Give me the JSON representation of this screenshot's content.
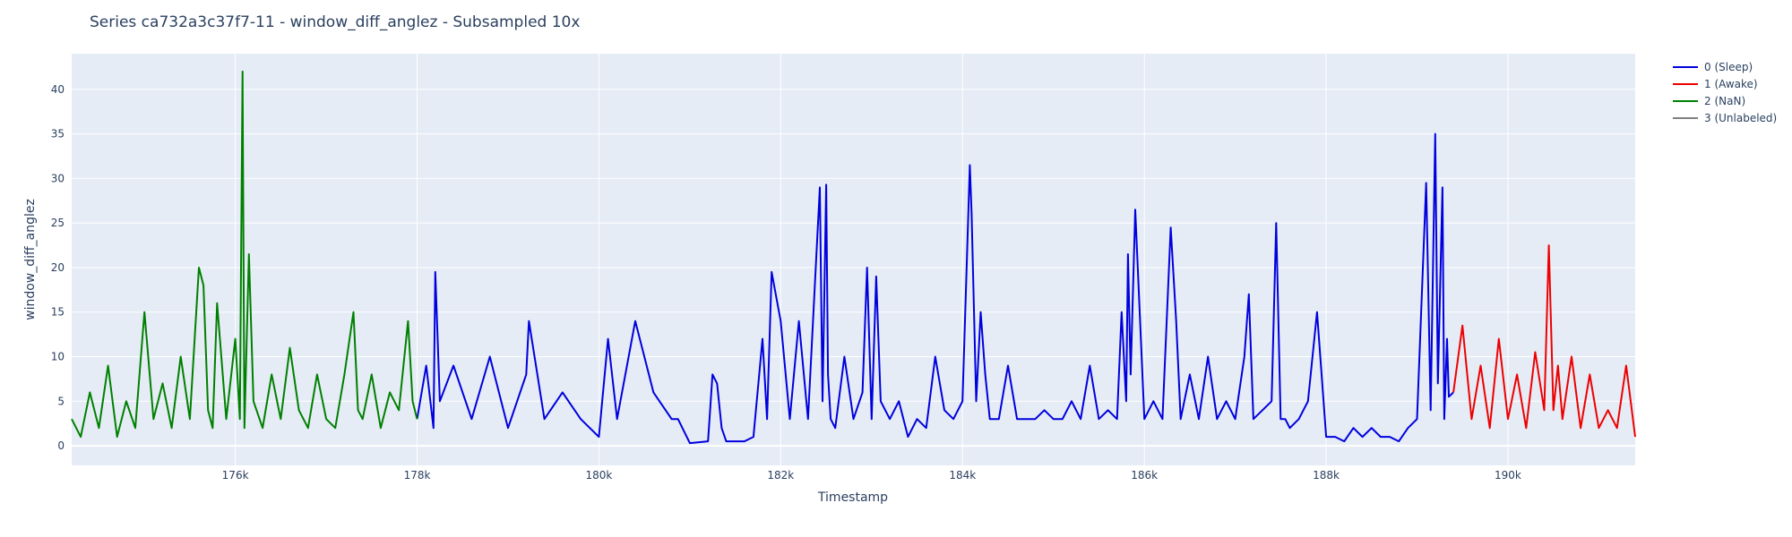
{
  "chart_data": {
    "type": "line",
    "title": "Series ca732a3c37f7-11 - window_diff_anglez - Subsampled 10x",
    "xlabel": "Timestamp",
    "ylabel": "window_diff_anglez",
    "xlim": [
      174200,
      191400
    ],
    "ylim": [
      -2.2,
      44
    ],
    "x_ticks": [
      176000,
      178000,
      180000,
      182000,
      184000,
      186000,
      188000,
      190000
    ],
    "x_tick_labels": [
      "176k",
      "178k",
      "180k",
      "182k",
      "184k",
      "186k",
      "188k",
      "190k"
    ],
    "y_ticks": [
      0,
      5,
      10,
      15,
      20,
      25,
      30,
      35,
      40
    ],
    "y_tick_labels": [
      "0",
      "5",
      "10",
      "15",
      "20",
      "25",
      "30",
      "35",
      "40"
    ],
    "grid": true,
    "legend_position": "top-right",
    "background": "#e5ecf6",
    "series": [
      {
        "name": "0 (Sleep)",
        "color": "#0000dd",
        "x": [
          178000,
          178100,
          178180,
          178200,
          178250,
          178400,
          178600,
          178800,
          179000,
          179200,
          179230,
          179400,
          179600,
          179800,
          180000,
          180100,
          180200,
          180400,
          180600,
          180800,
          180870,
          181000,
          181200,
          181250,
          181300,
          181350,
          181400,
          181600,
          181700,
          181800,
          181850,
          181900,
          182000,
          182100,
          182200,
          182300,
          182430,
          182460,
          182500,
          182520,
          182550,
          182600,
          182700,
          182800,
          182900,
          182950,
          183000,
          183050,
          183100,
          183200,
          183300,
          183400,
          183500,
          183600,
          183700,
          183800,
          183900,
          184000,
          184080,
          184100,
          184150,
          184200,
          184250,
          184300,
          184400,
          184500,
          184600,
          184700,
          184800,
          184900,
          185000,
          185100,
          185200,
          185300,
          185400,
          185500,
          185600,
          185700,
          185750,
          185800,
          185820,
          185850,
          185900,
          186000,
          186100,
          186200,
          186290,
          186350,
          186400,
          186500,
          186600,
          186700,
          186800,
          186900,
          187000,
          187100,
          187150,
          187200,
          187300,
          187400,
          187450,
          187500,
          187550,
          187600,
          187700,
          187800,
          187900,
          188000,
          188100,
          188200,
          188300,
          188400,
          188500,
          188600,
          188700,
          188800,
          188900,
          189000,
          189100,
          189150,
          189200,
          189230,
          189280,
          189300,
          189330,
          189350,
          189400
        ],
        "y": [
          3,
          9,
          2,
          19.5,
          5,
          9,
          3,
          10,
          2,
          8,
          14,
          3,
          6,
          3,
          1,
          12,
          3,
          14,
          6,
          3,
          3,
          0.3,
          0.5,
          8,
          7,
          2,
          0.5,
          0.5,
          1,
          12,
          3,
          19.5,
          14,
          3,
          14,
          3,
          29,
          5,
          29.3,
          8,
          3,
          2,
          10,
          3,
          6,
          20,
          3,
          19,
          5,
          3,
          5,
          1,
          3,
          2,
          10,
          4,
          3,
          5,
          31.5,
          26,
          5,
          15,
          8,
          3,
          3,
          9,
          3,
          3,
          3,
          4,
          3,
          3,
          5,
          3,
          9,
          3,
          4,
          3,
          15,
          5,
          21.5,
          8,
          26.5,
          3,
          5,
          3,
          24.5,
          14,
          3,
          8,
          3,
          10,
          3,
          5,
          3,
          10,
          17,
          3,
          4,
          5,
          25,
          3,
          3,
          2,
          3,
          5,
          15,
          1,
          1,
          0.5,
          2,
          1,
          2,
          1,
          1,
          0.5,
          2,
          3,
          29.5,
          4,
          35,
          7,
          29,
          3,
          12,
          5.5,
          6
        ]
      },
      {
        "name": "1 (Awake)",
        "color": "#ee0000",
        "x": [
          189400,
          189500,
          189600,
          189700,
          189800,
          189900,
          190000,
          190100,
          190200,
          190300,
          190400,
          190450,
          190500,
          190550,
          190600,
          190700,
          190800,
          190900,
          191000,
          191100,
          191200,
          191300,
          191400
        ],
        "y": [
          6,
          13.5,
          3,
          9,
          2,
          12,
          3,
          8,
          2,
          10.5,
          4,
          22.5,
          4,
          9,
          3,
          10,
          2,
          8,
          2,
          4,
          2,
          9,
          1
        ]
      },
      {
        "name": "2 (NaN)",
        "color": "#008000",
        "x": [
          174200,
          174300,
          174400,
          174500,
          174600,
          174700,
          174800,
          174900,
          175000,
          175100,
          175200,
          175300,
          175400,
          175500,
          175600,
          175650,
          175700,
          175750,
          175800,
          175900,
          176000,
          176050,
          176080,
          176100,
          176150,
          176200,
          176300,
          176400,
          176500,
          176600,
          176700,
          176800,
          176900,
          177000,
          177100,
          177200,
          177300,
          177350,
          177400,
          177500,
          177600,
          177700,
          177800,
          177900,
          177950,
          178000
        ],
        "y": [
          3,
          1,
          6,
          2,
          9,
          1,
          5,
          2,
          15,
          3,
          7,
          2,
          10,
          3,
          20,
          18,
          4,
          2,
          16,
          3,
          12,
          3,
          42,
          2,
          21.5,
          5,
          2,
          8,
          3,
          11,
          4,
          2,
          8,
          3,
          2,
          8,
          15,
          4,
          3,
          8,
          2,
          6,
          4,
          14,
          5,
          3
        ]
      },
      {
        "name": "3 (Unlabeled)",
        "color": "#808080",
        "x": [],
        "y": []
      }
    ]
  }
}
